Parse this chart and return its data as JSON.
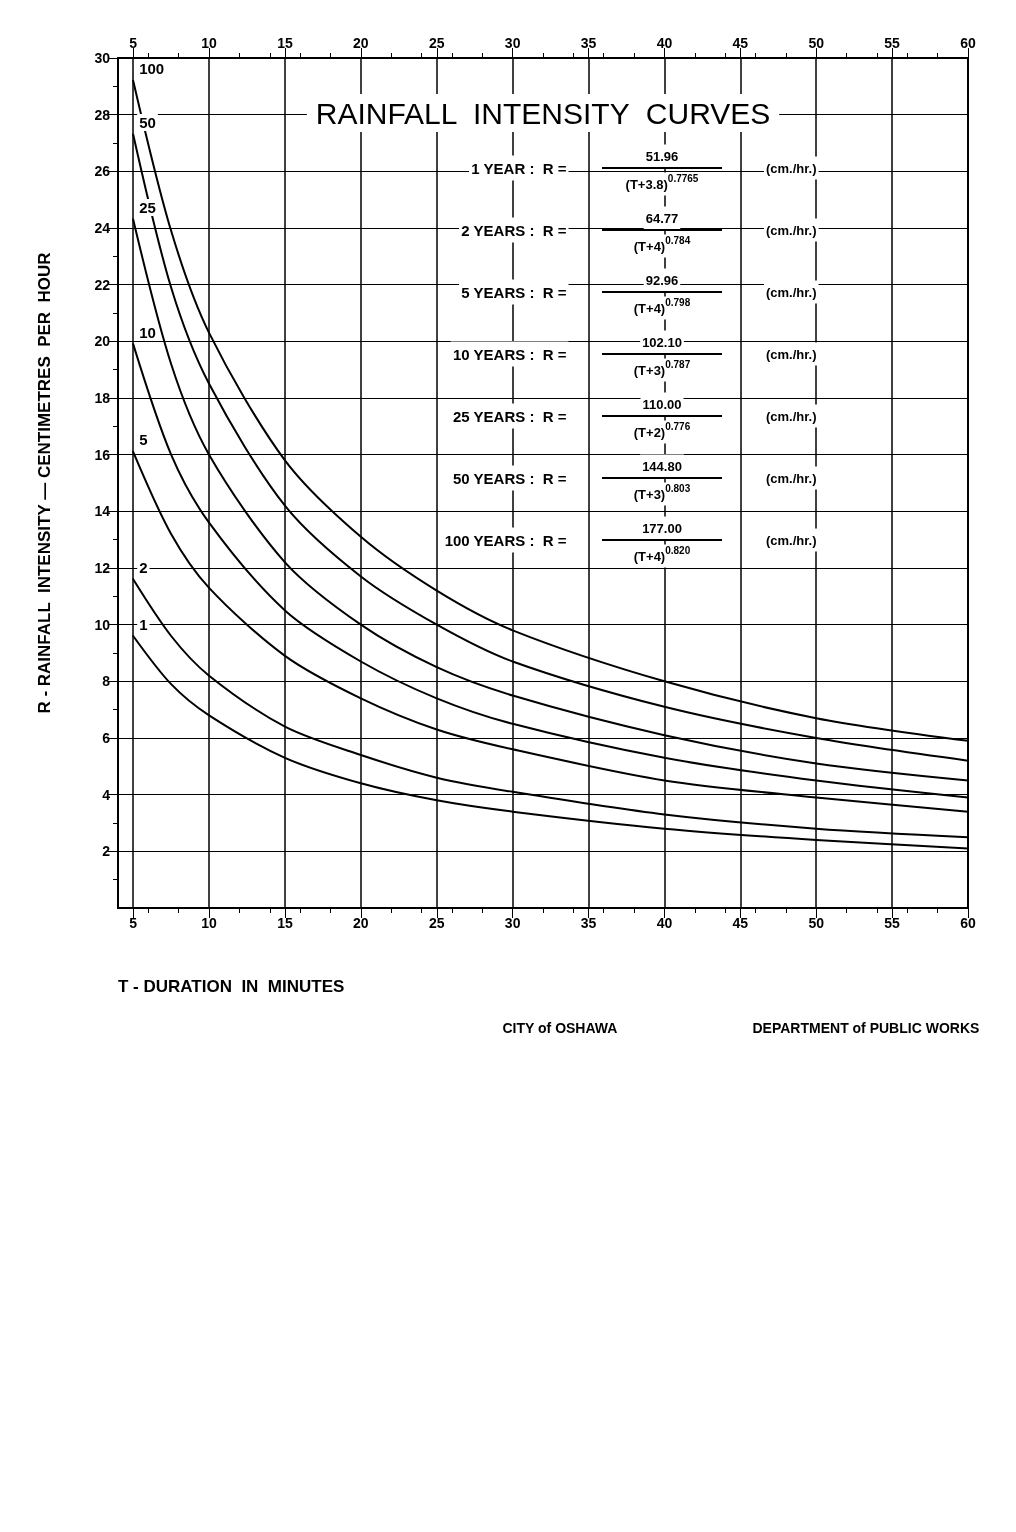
{
  "chart_data": {
    "type": "line",
    "title": "RAINFALL  INTENSITY  CURVES",
    "xlabel": "T - DURATION  IN  MINUTES",
    "ylabel": "R - RAINFALL  INTENSITY — CENTIMETRES  PER  HOUR",
    "x": [
      5,
      7.5,
      10,
      15,
      20,
      25,
      30,
      40,
      50,
      60
    ],
    "series": [
      {
        "name": "1",
        "color": "#000000",
        "values": [
          9.6,
          7.9,
          6.8,
          5.3,
          4.4,
          3.8,
          3.4,
          2.8,
          2.4,
          2.1
        ]
      },
      {
        "name": "2",
        "color": "#000000",
        "values": [
          11.6,
          9.6,
          8.2,
          6.4,
          5.4,
          4.6,
          4.1,
          3.3,
          2.8,
          2.5
        ]
      },
      {
        "name": "5",
        "color": "#000000",
        "values": [
          16.1,
          13.2,
          11.3,
          8.9,
          7.4,
          6.3,
          5.6,
          4.5,
          3.9,
          3.4
        ]
      },
      {
        "name": "10",
        "color": "#000000",
        "values": [
          19.9,
          16.0,
          13.6,
          10.5,
          8.7,
          7.4,
          6.5,
          5.3,
          4.5,
          3.9
        ]
      },
      {
        "name": "25",
        "color": "#000000",
        "values": [
          24.3,
          19.2,
          16.0,
          12.2,
          10.0,
          8.5,
          7.5,
          6.1,
          5.1,
          4.5
        ]
      },
      {
        "name": "50",
        "color": "#000000",
        "values": [
          27.3,
          21.9,
          18.5,
          14.2,
          11.7,
          10.0,
          8.7,
          7.1,
          6.0,
          5.2
        ]
      },
      {
        "name": "100",
        "color": "#000000",
        "values": [
          29.2,
          23.9,
          20.3,
          15.8,
          13.1,
          11.2,
          9.8,
          8.0,
          6.7,
          5.9
        ]
      }
    ],
    "xlim": [
      4,
      60
    ],
    "xticks": [
      5,
      10,
      15,
      20,
      25,
      30,
      35,
      40,
      45,
      50,
      55,
      60
    ],
    "x2lim": [
      4,
      60
    ],
    "x2ticks": [
      5,
      10,
      15,
      20,
      25,
      30,
      35,
      40,
      45,
      50,
      55,
      60
    ],
    "ylim": [
      0,
      30
    ],
    "yticks": [
      2,
      4,
      6,
      8,
      10,
      12,
      14,
      16,
      18,
      20,
      22,
      24,
      26,
      28,
      30
    ],
    "grid": true,
    "marker": "none",
    "line_style": "solid",
    "annotations": [
      "1 YEAR :  R =",
      "51.96",
      "(T+3.8)$^{0.7765}$",
      "(cm./hr.)",
      "2 YEARS :  R =",
      "64.77",
      "(T+4)$^{0.784}$",
      "(cm./hr.)",
      "5 YEARS :  R =",
      "92.96",
      "(T+4)$^{0.798}$",
      "(cm./hr.)",
      "10 YEARS :  R =",
      "102.10",
      "(T+3)$^{0.787}$",
      "(cm./hr.)",
      "25 YEARS :  R =",
      "110.00",
      "(T+2)$^{0.776}$",
      "(cm./hr.)",
      "50 YEARS :  R =",
      "144.80",
      "(T+3)$^{0.803}$",
      "(cm./hr.)",
      "100 YEARS :  R =",
      "177.00",
      "(T+4)$^{0.820}$",
      "(cm./hr.)",
      "CITY of OSHAWA",
      "DEPARTMENT of PUBLIC WORKS"
    ]
  }
}
